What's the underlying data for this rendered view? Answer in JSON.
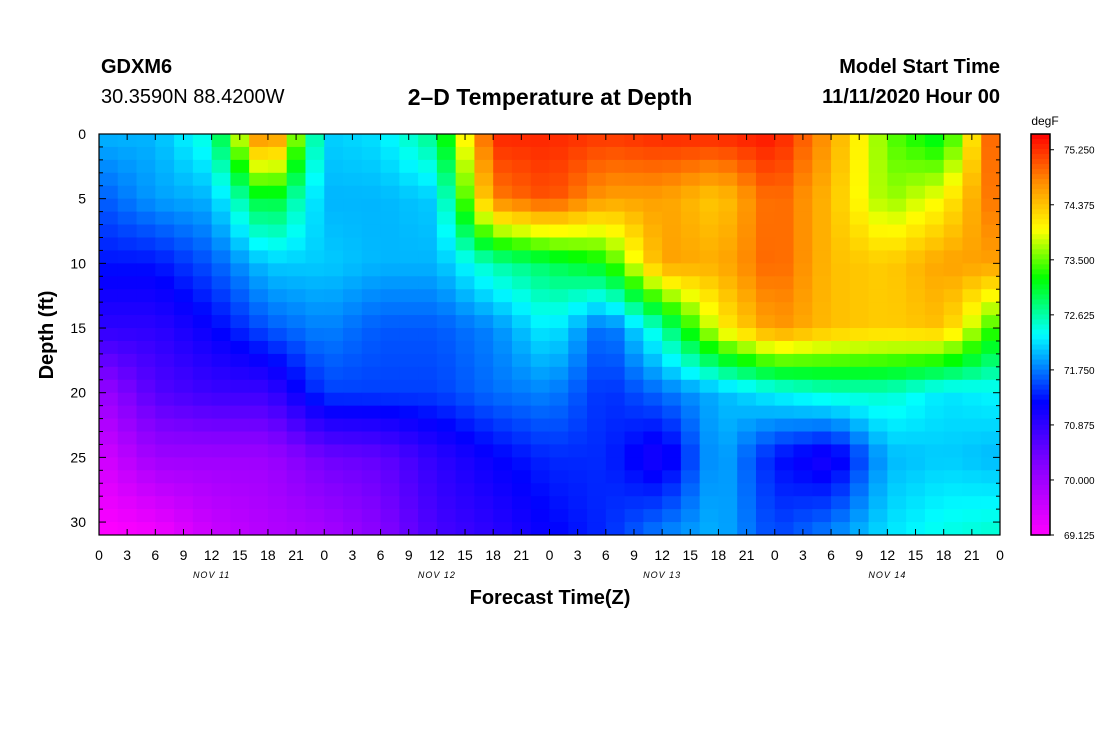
{
  "header": {
    "station_id": "GDXM6",
    "coordinates": "30.3590N 88.4200W",
    "title": "2–D Temperature at Depth",
    "start_label": "Model Start Time",
    "start_value": "11/11/2020 Hour 00"
  },
  "chart_data": {
    "type": "heatmap",
    "title": "2–D Temperature at Depth",
    "xlabel": "Forecast Time(Z)",
    "ylabel": "Depth (ft)",
    "x_hours": [
      0,
      3,
      6,
      9,
      12,
      15,
      18,
      21,
      24,
      27,
      30,
      33,
      36,
      39,
      42,
      45,
      48,
      51,
      54,
      57,
      60,
      63,
      66,
      69,
      72,
      75,
      78,
      81,
      84,
      87,
      90,
      93,
      96
    ],
    "x_tick_labels": [
      "0",
      "3",
      "6",
      "9",
      "12",
      "15",
      "18",
      "21",
      "0",
      "3",
      "6",
      "9",
      "12",
      "15",
      "18",
      "21",
      "0",
      "3",
      "6",
      "9",
      "12",
      "15",
      "18",
      "21",
      "0",
      "3",
      "6",
      "9",
      "12",
      "15",
      "18",
      "21",
      "0"
    ],
    "date_labels": [
      {
        "label": "NOV 11",
        "hour": 12
      },
      {
        "label": "NOV 12",
        "hour": 36
      },
      {
        "label": "NOV 13",
        "hour": 60
      },
      {
        "label": "NOV 14",
        "hour": 84
      }
    ],
    "y_ticks": [
      0,
      5,
      10,
      15,
      20,
      25,
      30
    ],
    "y_tick_labels": [
      "0",
      "5",
      "10",
      "15",
      "20",
      "25",
      "30"
    ],
    "xlim": [
      0,
      96
    ],
    "ylim": [
      0,
      31
    ],
    "colorbar": {
      "units": "degF",
      "min": 69.125,
      "max": 75.5,
      "tick_values": [
        75.25,
        74.375,
        73.5,
        72.625,
        71.75,
        70.875,
        70.0,
        69.125
      ],
      "tick_labels": [
        "75.250",
        "74.375",
        "73.500",
        "72.625",
        "71.750",
        "70.875",
        "70.000",
        "69.125"
      ]
    },
    "grid_hours": [
      0,
      6,
      12,
      18,
      24,
      30,
      36,
      42,
      48,
      54,
      60,
      66,
      72,
      78,
      84,
      90,
      96
    ],
    "grid_depths": [
      0,
      5,
      10,
      15,
      20,
      25,
      31
    ],
    "temperature_degF": [
      [
        72.0,
        72.0,
        72.5,
        75.2,
        72.1,
        72.2,
        72.8,
        75.3,
        75.3,
        75.2,
        75.3,
        75.3,
        75.4,
        74.6,
        73.5,
        73.0,
        75.3
      ],
      [
        71.6,
        71.9,
        72.0,
        73.2,
        72.0,
        72.0,
        72.1,
        74.8,
        75.1,
        74.6,
        74.6,
        74.3,
        75.0,
        74.4,
        73.6,
        74.0,
        75.0
      ],
      [
        71.3,
        71.3,
        71.6,
        72.1,
        72.1,
        72.0,
        72.0,
        72.6,
        72.9,
        73.2,
        74.6,
        74.5,
        75.0,
        74.4,
        74.3,
        74.6,
        74.6
      ],
      [
        70.9,
        70.9,
        71.2,
        71.6,
        71.8,
        71.6,
        71.6,
        71.8,
        72.3,
        71.6,
        72.6,
        74.0,
        74.7,
        74.4,
        74.3,
        74.4,
        73.2
      ],
      [
        70.0,
        70.6,
        70.8,
        70.8,
        71.5,
        71.5,
        71.5,
        71.7,
        71.8,
        71.4,
        71.7,
        72.0,
        72.3,
        72.5,
        72.5,
        72.2,
        72.3
      ],
      [
        69.5,
        70.0,
        70.0,
        70.0,
        70.4,
        70.5,
        70.9,
        71.2,
        71.4,
        71.4,
        71.0,
        72.0,
        71.3,
        71.0,
        72.0,
        72.1,
        72.0
      ],
      [
        69.1,
        69.2,
        69.6,
        69.8,
        69.9,
        70.2,
        70.7,
        70.9,
        71.2,
        71.4,
        71.8,
        72.0,
        71.5,
        71.8,
        72.2,
        72.4,
        72.5
      ]
    ]
  }
}
